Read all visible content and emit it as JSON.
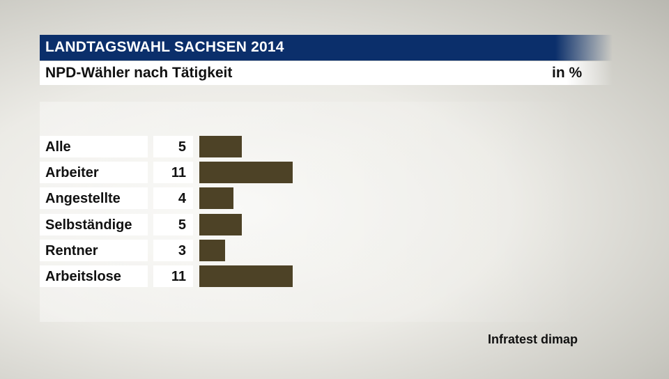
{
  "header": {
    "title": "LANDTAGSWAHL SACHSEN 2014",
    "subtitle": "NPD-Wähler nach Tätigkeit",
    "unit": "in %"
  },
  "colors": {
    "header_bg": "#0b2f6b",
    "bar": "#4d4226"
  },
  "chart_data": {
    "type": "bar",
    "orientation": "horizontal",
    "title": "NPD-Wähler nach Tätigkeit",
    "unit": "in %",
    "categories": [
      "Alle",
      "Arbeiter",
      "Angestellte",
      "Selbständige",
      "Rentner",
      "Arbeitslose"
    ],
    "values": [
      5,
      11,
      4,
      5,
      3,
      11
    ],
    "value_labels": [
      "5",
      "11",
      "4",
      "5",
      "3",
      "11"
    ]
  },
  "source": "Infratest dimap"
}
